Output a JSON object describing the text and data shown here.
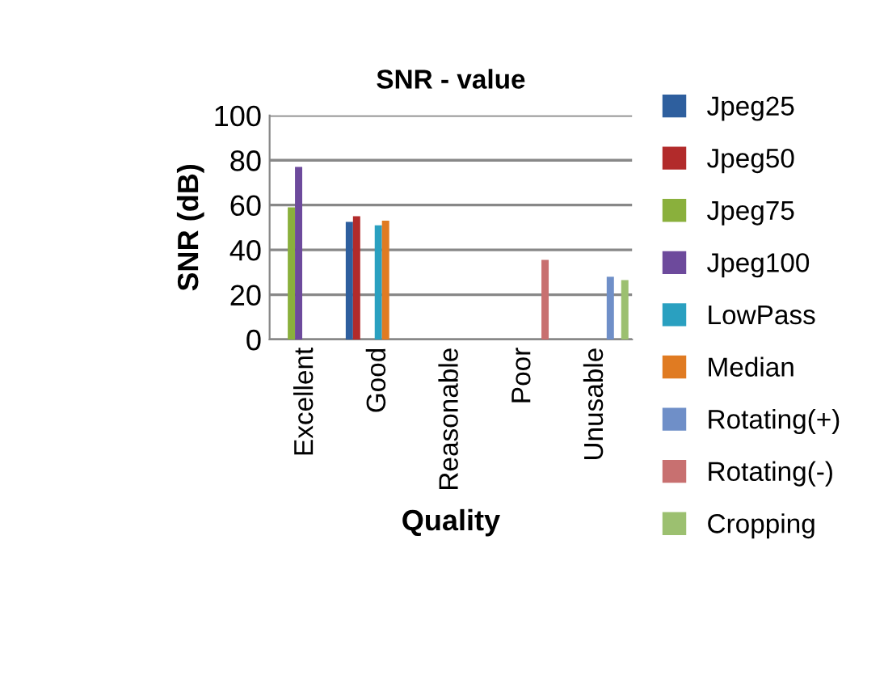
{
  "chart_data": {
    "type": "bar",
    "title": "SNR - value",
    "xlabel": "Quality",
    "ylabel": "SNR (dB)",
    "categories": [
      "Excellent",
      "Good",
      "Reasonable",
      "Poor",
      "Unusable"
    ],
    "series": [
      {
        "name": "Jpeg25",
        "color": "#2e5f9e",
        "values": [
          null,
          52.5,
          null,
          null,
          null
        ]
      },
      {
        "name": "Jpeg50",
        "color": "#b22b2b",
        "values": [
          null,
          55,
          null,
          null,
          null
        ]
      },
      {
        "name": "Jpeg75",
        "color": "#8ab03c",
        "values": [
          59,
          null,
          null,
          null,
          null
        ]
      },
      {
        "name": "Jpeg100",
        "color": "#6d4a9c",
        "values": [
          77,
          null,
          null,
          null,
          null
        ]
      },
      {
        "name": "LowPass",
        "color": "#2aa0c0",
        "values": [
          null,
          51,
          null,
          null,
          null
        ]
      },
      {
        "name": "Median",
        "color": "#e07b22",
        "values": [
          null,
          53,
          null,
          null,
          null
        ]
      },
      {
        "name": "Rotating(+)",
        "color": "#6f8fc8",
        "values": [
          null,
          null,
          null,
          null,
          28
        ]
      },
      {
        "name": "Rotating(-)",
        "color": "#c87070",
        "values": [
          null,
          null,
          null,
          35.5,
          null
        ]
      },
      {
        "name": "Cropping",
        "color": "#9cc070",
        "values": [
          null,
          null,
          null,
          null,
          26.5
        ]
      }
    ],
    "ylim": [
      0,
      100
    ],
    "yticks": [
      0,
      20,
      40,
      60,
      80,
      100
    ],
    "grid": "y",
    "legend": "right"
  }
}
